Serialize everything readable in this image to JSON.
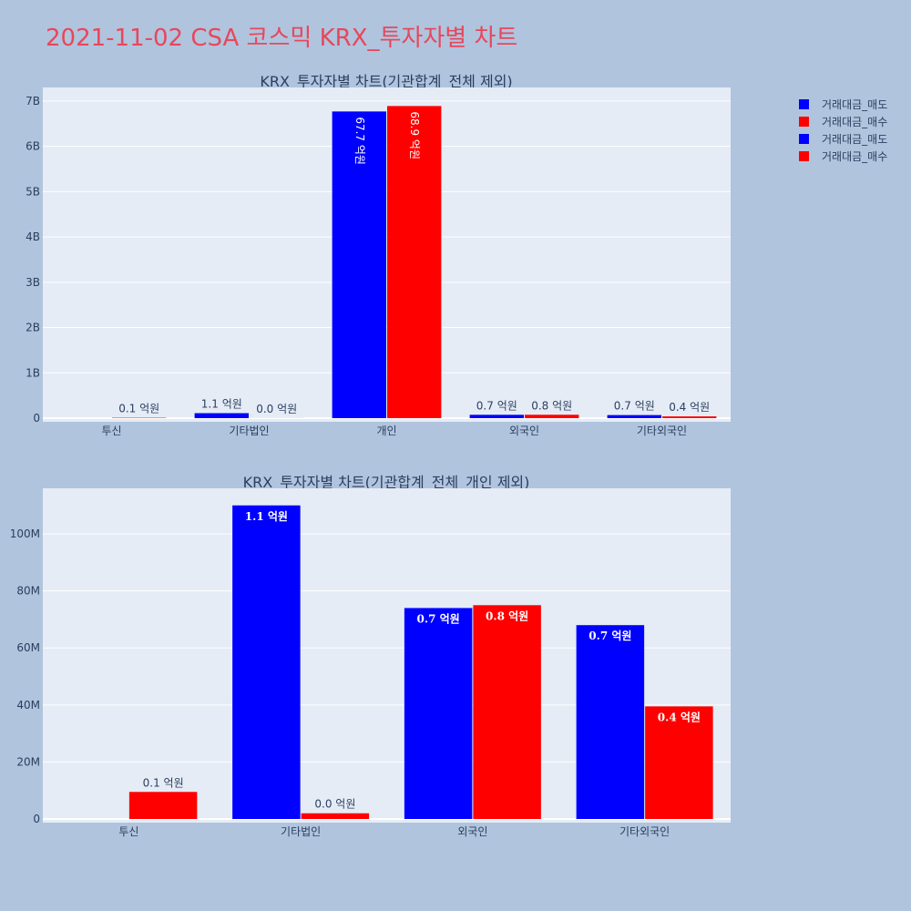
{
  "page": {
    "title": "2021-11-02 CSA 코스믹 KRX_투자자별 차트",
    "title_color": "#e8475b",
    "background": "#b0c4de",
    "plot_background": "#e5ecf6",
    "text_color": "#2a3f5f"
  },
  "legend": {
    "placement": "top-right",
    "items": [
      {
        "label": "거래대금_매도",
        "color": "#0000ff"
      },
      {
        "label": "거래대금_매수",
        "color": "#ff0000"
      },
      {
        "label": "거래대금_매도",
        "color": "#0000ff"
      },
      {
        "label": "거래대금_매수",
        "color": "#ff0000"
      }
    ]
  },
  "chart_data": [
    {
      "type": "bar",
      "title": "KRX_투자자별 차트(기관합계_전체 제외)",
      "categories": [
        "투신",
        "기타법인",
        "개인",
        "외국인",
        "기타외국인"
      ],
      "ylim": [
        0,
        7300000000
      ],
      "yticks": [
        0,
        1000000000,
        2000000000,
        3000000000,
        4000000000,
        5000000000,
        6000000000,
        7000000000
      ],
      "ytick_labels": [
        "0",
        "1B",
        "2B",
        "3B",
        "4B",
        "5B",
        "6B",
        "7B"
      ],
      "grid": true,
      "text_orientation": "vertical-when-inside",
      "series": [
        {
          "name": "거래대금_매도",
          "color": "#0000ff",
          "values": [
            0,
            110000000,
            6770000000,
            74000000,
            68000000
          ],
          "labels": [
            "",
            "1.1 억원",
            "67.7 억원",
            "0.7 억원",
            "0.7 억원"
          ]
        },
        {
          "name": "거래대금_매수",
          "color": "#ff0000",
          "values": [
            9000000,
            2000000,
            6890000000,
            75000000,
            39000000
          ],
          "labels": [
            "0.1 억원",
            "0.0 억원",
            "68.9 억원",
            "0.8 억원",
            "0.4 억원"
          ]
        }
      ]
    },
    {
      "type": "bar",
      "title": "KRX_투자자별 차트(기관합계_전체_개인 제외)",
      "categories": [
        "투신",
        "기타법인",
        "외국인",
        "기타외국인"
      ],
      "ylim": [
        0,
        116000000
      ],
      "yticks": [
        0,
        20000000,
        40000000,
        60000000,
        80000000,
        100000000
      ],
      "ytick_labels": [
        "0",
        "20M",
        "40M",
        "60M",
        "80M",
        "100M"
      ],
      "grid": true,
      "text_orientation": "horizontal",
      "series": [
        {
          "name": "거래대금_매도",
          "color": "#0000ff",
          "values": [
            0,
            110000000,
            74000000,
            68000000
          ],
          "labels": [
            "",
            "1.1 억원",
            "0.7 억원",
            "0.7 억원"
          ]
        },
        {
          "name": "거래대금_매수",
          "color": "#ff0000",
          "values": [
            9500000,
            2000000,
            75000000,
            39500000
          ],
          "labels": [
            "0.1 억원",
            "0.0 억원",
            "0.8 억원",
            "0.4 억원"
          ]
        }
      ]
    }
  ]
}
